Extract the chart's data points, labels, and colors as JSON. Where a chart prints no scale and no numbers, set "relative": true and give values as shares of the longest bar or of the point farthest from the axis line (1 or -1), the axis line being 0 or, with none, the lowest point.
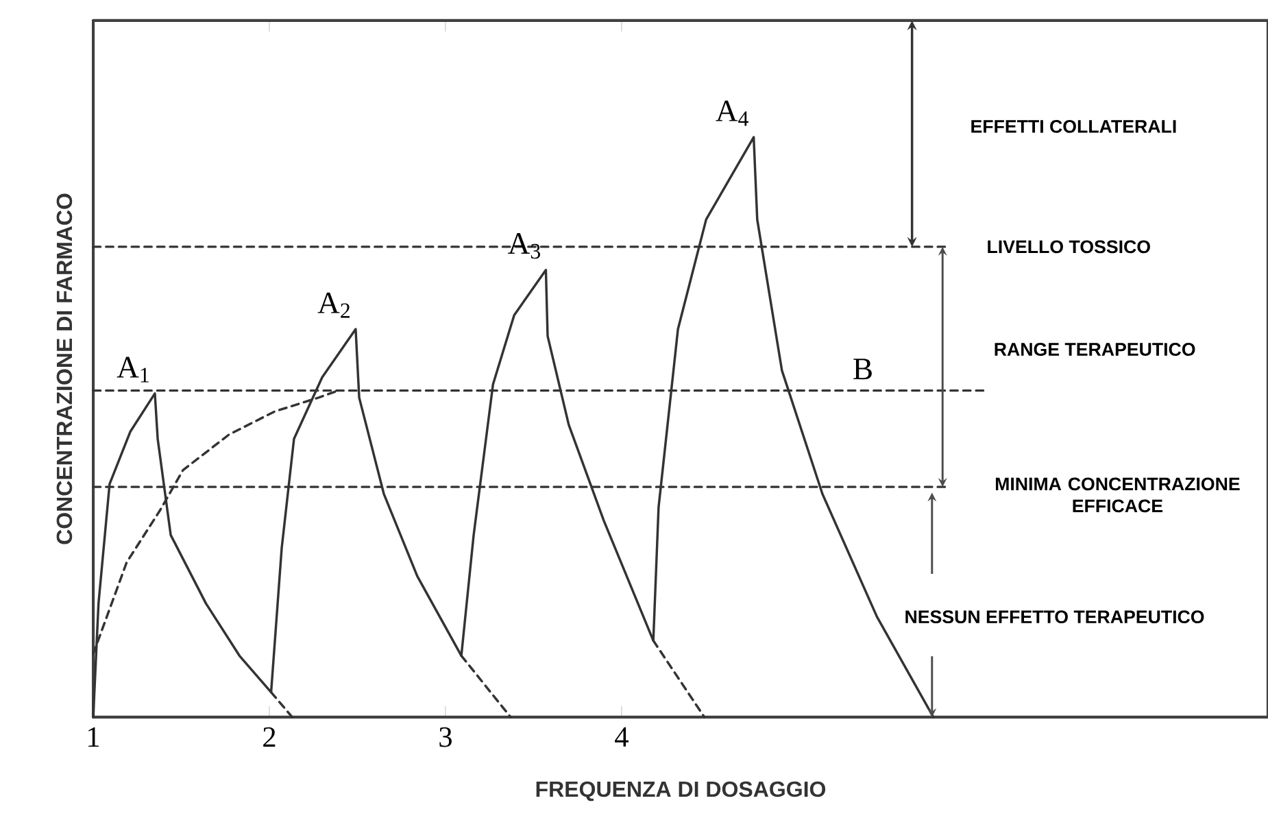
{
  "chart_data": {
    "type": "line",
    "relative": true,
    "xlabel": "FREQUENZA DI DOSAGGIO",
    "ylabel": "CONCENTRAZIONE DI FARMACO",
    "xlim": [
      1,
      7.67
    ],
    "xticks": [
      1,
      2,
      3,
      4
    ],
    "tick_labels": "x",
    "series": [
      {
        "color": "#333333",
        "line_style": "solid",
        "x": [
          1.0,
          1.03,
          1.093,
          1.21,
          1.35,
          1.366,
          1.44,
          1.64,
          1.83,
          2.01,
          2.07,
          2.14,
          2.3,
          2.49,
          2.51,
          2.65,
          2.84,
          3.09,
          3.16,
          3.27,
          3.39,
          3.57,
          3.58,
          3.7,
          3.9,
          4.18,
          4.21,
          4.32,
          4.48,
          4.75,
          4.77,
          4.91,
          5.14,
          5.45,
          5.77
        ],
        "values": [
          0,
          0.196,
          0.402,
          0.492,
          0.558,
          0.48,
          0.314,
          0.196,
          0.106,
          0.043,
          0.291,
          0.48,
          0.586,
          0.669,
          0.551,
          0.385,
          0.243,
          0.106,
          0.314,
          0.574,
          0.693,
          0.771,
          0.657,
          0.504,
          0.338,
          0.132,
          0.362,
          0.669,
          0.858,
          1.0,
          0.858,
          0.598,
          0.385,
          0.173,
          0
        ]
      },
      {
        "color": "#333333",
        "line_style": "dashed",
        "x": [
          2.01,
          2.13
        ],
        "values": [
          0.043,
          0
        ]
      },
      {
        "color": "#333333",
        "line_style": "dashed",
        "x": [
          3.09,
          3.37
        ],
        "values": [
          0.106,
          0
        ]
      },
      {
        "color": "#333333",
        "line_style": "dashed",
        "x": [
          4.18,
          4.47
        ],
        "values": [
          0.132,
          0
        ]
      },
      {
        "color": "#333333",
        "line_style": "dashed",
        "x": [
          1.0,
          1.19,
          1.38,
          1.51,
          1.77,
          2.03,
          2.28,
          2.39
        ],
        "values": [
          0.109,
          0.267,
          0.357,
          0.426,
          0.487,
          0.527,
          0.551,
          0.563
        ]
      }
    ],
    "ref_lines": [
      {
        "axis": "y",
        "value": 0.811,
        "label": "LIVELLO TOSSICO",
        "line_style": "dashed",
        "color": "#333333"
      },
      {
        "axis": "y",
        "value": 0.563,
        "line_style": "dashed",
        "color": "#333333"
      },
      {
        "axis": "y",
        "value": 0.397,
        "label": "MINIMA CONCENTRAZIONE EFFICACE",
        "line_style": "dashed",
        "color": "#333333"
      }
    ],
    "annotations": [
      {
        "text": "A$_{1}$",
        "x": 1.35,
        "y": 0.558
      },
      {
        "text": "A$_{2}$",
        "x": 2.49,
        "y": 0.669
      },
      {
        "text": "A$_{3}$",
        "x": 3.57,
        "y": 0.771
      },
      {
        "text": "A$_{4}$",
        "x": 4.75,
        "y": 1.0
      },
      {
        "text": "B",
        "x": 5.49,
        "y": 0.563
      },
      "EFFETTI COLLATERALI",
      "RANGE TERAPEUTICO",
      "NESSUN EFFETTO TERAPEUTICO"
    ]
  }
}
